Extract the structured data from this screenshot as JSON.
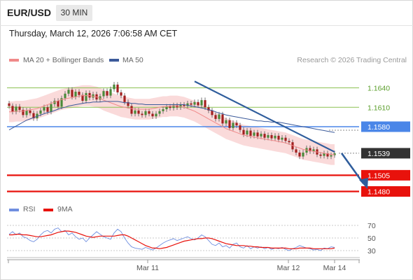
{
  "header": {
    "pair": "EUR/USD",
    "timeframe": "30 MIN"
  },
  "timestamp": "Thursday, March 12, 2026 7:06:58 AM CET",
  "legend": {
    "ma20": "MA 20 + Bollinger Bands",
    "ma50": "MA 50",
    "rsi": "RSI",
    "ma9": "9MA"
  },
  "source": "Research © 2026 Trading Central",
  "colors": {
    "ma20": "#f08a8a",
    "ma50": "#3b5a9a",
    "bollinger": "#f9d4d4",
    "resistance": "#8cc152",
    "pivot": "#4a86e8",
    "support": "#e8120c",
    "current": "#333333",
    "arrow": "#2f5d9c",
    "rsi": "#6f8fe0",
    "ma9": "#e8120c",
    "candle_up": "#4a8a3a",
    "candle_down": "#a32020"
  },
  "chart_data": [
    {
      "type": "candlestick",
      "title": "EUR/USD",
      "levels": [
        {
          "label": "1.1640",
          "value": 1.164,
          "kind": "resistance"
        },
        {
          "label": "1.1610",
          "value": 1.161,
          "kind": "resistance"
        },
        {
          "label": "1.1580",
          "value": 1.158,
          "kind": "pivot"
        },
        {
          "label": "1.1539",
          "value": 1.1539,
          "kind": "current"
        },
        {
          "label": "1.1505",
          "value": 1.1505,
          "kind": "support"
        },
        {
          "label": "1.1480",
          "value": 1.148,
          "kind": "support"
        }
      ],
      "x_tick_labels": [
        "Mar 11",
        "Mar 12",
        "Mar 14"
      ],
      "close": [
        1.1612,
        1.1603,
        1.1611,
        1.1606,
        1.1598,
        1.1605,
        1.1601,
        1.1593,
        1.16,
        1.1605,
        1.161,
        1.1603,
        1.1615,
        1.162,
        1.1611,
        1.1624,
        1.1631,
        1.1637,
        1.1626,
        1.1634,
        1.1629,
        1.162,
        1.1632,
        1.1625,
        1.163,
        1.1622,
        1.1627,
        1.1635,
        1.1628,
        1.1638,
        1.1645,
        1.1633,
        1.1628,
        1.1618,
        1.1612,
        1.16,
        1.1605,
        1.16,
        1.1598,
        1.1604,
        1.16,
        1.1596,
        1.16,
        1.1604,
        1.1607,
        1.1611,
        1.1609,
        1.1613,
        1.161,
        1.1614,
        1.1612,
        1.1616,
        1.1614,
        1.1618,
        1.1613,
        1.1621,
        1.161,
        1.1605,
        1.1598,
        1.1592,
        1.1599,
        1.1585,
        1.159,
        1.1578,
        1.1586,
        1.1582,
        1.1575,
        1.1568,
        1.1574,
        1.1566,
        1.1571,
        1.1565,
        1.1569,
        1.1563,
        1.1567,
        1.1562,
        1.1566,
        1.156,
        1.1563,
        1.1558,
        1.1556,
        1.1545,
        1.154,
        1.1534,
        1.154,
        1.1547,
        1.1542,
        1.1545,
        1.1537,
        1.1535,
        1.1539,
        1.1534,
        1.1536,
        1.1539
      ],
      "ma20": [
        1.1603,
        1.1603,
        1.1604,
        1.1604,
        1.1604,
        1.1605,
        1.1606,
        1.1607,
        1.1608,
        1.161,
        1.1612,
        1.1614,
        1.1616,
        1.1618,
        1.162,
        1.1622,
        1.1623,
        1.1624,
        1.1625,
        1.1626,
        1.1627,
        1.1628,
        1.1628,
        1.1628,
        1.1627,
        1.1626,
        1.1624,
        1.1621,
        1.1619,
        1.1617,
        1.1615,
        1.1613,
        1.1611,
        1.161,
        1.1609,
        1.1608,
        1.1607,
        1.1607,
        1.1607,
        1.1607,
        1.1607,
        1.1608,
        1.1609,
        1.161,
        1.1611,
        1.1611,
        1.1612,
        1.1612,
        1.1612,
        1.1611,
        1.161,
        1.1608,
        1.1606,
        1.1604,
        1.1601,
        1.1598,
        1.1595,
        1.1592,
        1.1589,
        1.1586,
        1.1583,
        1.158,
        1.1577,
        1.1575,
        1.1573,
        1.1571,
        1.1569,
        1.1567,
        1.1566,
        1.1565,
        1.1564,
        1.1563,
        1.1562,
        1.1561,
        1.156,
        1.1559,
        1.1558,
        1.1557,
        1.1556,
        1.1555,
        1.1553,
        1.1551,
        1.1549,
        1.1547,
        1.1545,
        1.1544,
        1.1543,
        1.1542,
        1.1541,
        1.154,
        1.1539,
        1.1538,
        1.1537,
        1.1537
      ],
      "ma50": [
        1.1575,
        1.1578,
        1.1581,
        1.1584,
        1.1587,
        1.159,
        1.1592,
        1.1594,
        1.1596,
        1.1598,
        1.16,
        1.1602,
        1.1603,
        1.1605,
        1.1607,
        1.1609,
        1.161,
        1.1612,
        1.1613,
        1.1614,
        1.1615,
        1.1616,
        1.1617,
        1.1617,
        1.1618,
        1.1618,
        1.1618,
        1.1619,
        1.1619,
        1.1619,
        1.1619,
        1.1619,
        1.1618,
        1.1617,
        1.1617,
        1.1616,
        1.1616,
        1.1615,
        1.1615,
        1.1614,
        1.1614,
        1.1614,
        1.1614,
        1.1614,
        1.1614,
        1.1614,
        1.1614,
        1.1614,
        1.1614,
        1.1614,
        1.1614,
        1.1613,
        1.1612,
        1.1611,
        1.161,
        1.1609,
        1.1608,
        1.1606,
        1.1605,
        1.1603,
        1.1601,
        1.16,
        1.1598,
        1.1597,
        1.1596,
        1.1595,
        1.1594,
        1.1593,
        1.1592,
        1.1591,
        1.159,
        1.1589,
        1.1589,
        1.1588,
        1.1588,
        1.1587,
        1.1587,
        1.1587,
        1.1586,
        1.1585,
        1.1584,
        1.1583,
        1.1582,
        1.1581,
        1.158,
        1.1579,
        1.1578,
        1.1577,
        1.1576,
        1.1575,
        1.1574,
        1.1573,
        1.1572,
        1.1571
      ],
      "bollinger_width": 0.0016,
      "trendline": {
        "from": {
          "index": 53,
          "value": 1.165
        },
        "to": {
          "index": 93,
          "value": 1.1541
        }
      },
      "forecast_arrow": {
        "from": {
          "index": 93,
          "value": 1.1539
        },
        "to": {
          "index": 101,
          "value": 1.1486
        }
      }
    },
    {
      "type": "line",
      "title": "RSI",
      "y_tick_labels": [
        "70",
        "50",
        "30"
      ],
      "ylim": [
        20,
        80
      ],
      "series": [
        {
          "name": "RSI",
          "values": [
            56,
            60,
            55,
            58,
            52,
            50,
            46,
            44,
            48,
            55,
            60,
            62,
            58,
            64,
            66,
            60,
            62,
            55,
            58,
            52,
            48,
            50,
            44,
            50,
            55,
            60,
            56,
            52,
            50,
            48,
            58,
            64,
            60,
            50,
            42,
            36,
            34,
            33,
            32,
            35,
            33,
            31,
            34,
            38,
            42,
            45,
            47,
            49,
            46,
            48,
            50,
            52,
            49,
            47,
            50,
            55,
            52,
            46,
            40,
            38,
            42,
            36,
            38,
            34,
            40,
            42,
            36,
            34,
            38,
            33,
            36,
            34,
            36,
            33,
            35,
            32,
            34,
            33,
            35,
            32,
            30,
            33,
            35,
            38,
            36,
            34,
            33,
            31,
            32,
            30,
            34,
            33,
            36,
            35
          ]
        },
        {
          "name": "9MA",
          "values": [
            55,
            55,
            56,
            56,
            55,
            55,
            54,
            53,
            52,
            52,
            53,
            54,
            55,
            57,
            59,
            60,
            61,
            61,
            60,
            59,
            57,
            55,
            53,
            52,
            51,
            52,
            53,
            53,
            53,
            53,
            53,
            54,
            55,
            55,
            53,
            50,
            47,
            44,
            41,
            38,
            36,
            34,
            34,
            33,
            34,
            35,
            37,
            39,
            41,
            43,
            45,
            46,
            47,
            48,
            49,
            49,
            50,
            50,
            49,
            47,
            45,
            43,
            41,
            40,
            39,
            38,
            38,
            38,
            37,
            37,
            36,
            36,
            35,
            35,
            35,
            34,
            34,
            34,
            34,
            34,
            33,
            33,
            33,
            34,
            34,
            34,
            34,
            33,
            33,
            33,
            33,
            33,
            33,
            34
          ]
        }
      ]
    }
  ]
}
